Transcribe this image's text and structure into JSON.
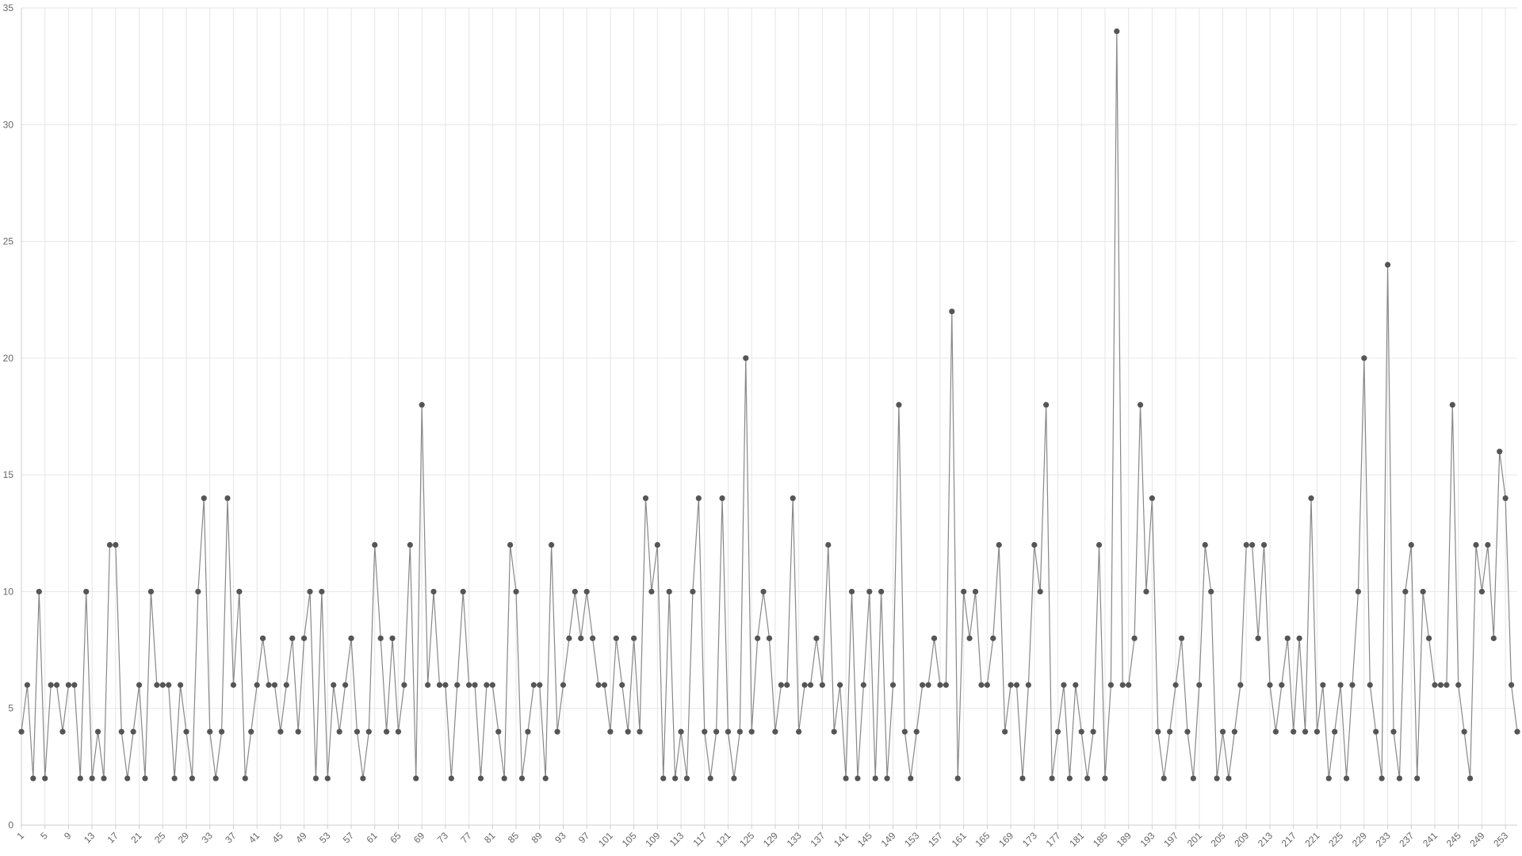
{
  "chart_data": {
    "type": "line",
    "x": [
      1,
      2,
      3,
      4,
      5,
      6,
      7,
      8,
      9,
      10,
      11,
      12,
      13,
      14,
      15,
      16,
      17,
      18,
      19,
      20,
      21,
      22,
      23,
      24,
      25,
      26,
      27,
      28,
      29,
      30,
      31,
      32,
      33,
      34,
      35,
      36,
      37,
      38,
      39,
      40,
      41,
      42,
      43,
      44,
      45,
      46,
      47,
      48,
      49,
      50,
      51,
      52,
      53,
      54,
      55,
      56,
      57,
      58,
      59,
      60,
      61,
      62,
      63,
      64,
      65,
      66,
      67,
      68,
      69,
      70,
      71,
      72,
      73,
      74,
      75,
      76,
      77,
      78,
      79,
      80,
      81,
      82,
      83,
      84,
      85,
      86,
      87,
      88,
      89,
      90,
      91,
      92,
      93,
      94,
      95,
      96,
      97,
      98,
      99,
      100,
      101,
      102,
      103,
      104,
      105,
      106,
      107,
      108,
      109,
      110,
      111,
      112,
      113,
      114,
      115,
      116,
      117,
      118,
      119,
      120,
      121,
      122,
      123,
      124,
      125,
      126,
      127,
      128,
      129,
      130,
      131,
      132,
      133,
      134,
      135,
      136,
      137,
      138,
      139,
      140,
      141,
      142,
      143,
      144,
      145,
      146,
      147,
      148,
      149,
      150,
      151,
      152,
      153,
      154,
      155,
      156,
      157,
      158,
      159,
      160,
      161,
      162,
      163,
      164,
      165,
      166,
      167,
      168,
      169,
      170,
      171,
      172,
      173,
      174,
      175,
      176,
      177,
      178,
      179,
      180,
      181,
      182,
      183,
      184,
      185,
      186,
      187,
      188,
      189,
      190,
      191,
      192,
      193,
      194,
      195,
      196,
      197,
      198,
      199,
      200,
      201,
      202,
      203,
      204,
      205,
      206,
      207,
      208,
      209,
      210,
      211,
      212,
      213,
      214,
      215,
      216,
      217,
      218,
      219,
      220,
      221,
      222,
      223,
      224,
      225,
      226,
      227,
      228,
      229,
      230,
      231,
      232,
      233,
      234,
      235,
      236,
      237,
      238,
      239,
      240,
      241,
      242,
      243,
      244,
      245,
      246,
      247,
      248,
      249,
      250,
      251,
      252,
      253,
      254,
      255
    ],
    "values": [
      4,
      6,
      2,
      10,
      2,
      6,
      6,
      4,
      6,
      6,
      2,
      10,
      2,
      4,
      2,
      12,
      12,
      4,
      2,
      4,
      6,
      2,
      10,
      6,
      6,
      6,
      2,
      6,
      4,
      2,
      10,
      14,
      4,
      2,
      4,
      14,
      6,
      10,
      2,
      4,
      6,
      8,
      6,
      6,
      4,
      6,
      8,
      4,
      8,
      10,
      2,
      10,
      2,
      6,
      4,
      6,
      8,
      4,
      2,
      4,
      12,
      8,
      4,
      8,
      4,
      6,
      12,
      2,
      18,
      6,
      10,
      6,
      6,
      2,
      6,
      10,
      6,
      6,
      2,
      6,
      6,
      4,
      2,
      12,
      10,
      2,
      4,
      6,
      6,
      2,
      12,
      4,
      6,
      8,
      10,
      8,
      10,
      8,
      6,
      6,
      4,
      8,
      6,
      4,
      8,
      4,
      14,
      10,
      12,
      2,
      10,
      2,
      4,
      2,
      10,
      14,
      4,
      2,
      4,
      14,
      4,
      2,
      4,
      20,
      4,
      8,
      10,
      8,
      4,
      6,
      6,
      14,
      4,
      6,
      6,
      8,
      6,
      12,
      4,
      6,
      2,
      10,
      2,
      6,
      10,
      2,
      10,
      2,
      6,
      18,
      4,
      2,
      4,
      6,
      6,
      8,
      6,
      6,
      22,
      2,
      10,
      8,
      10,
      6,
      6,
      8,
      12,
      4,
      6,
      6,
      2,
      6,
      12,
      10,
      18,
      2,
      4,
      6,
      2,
      6,
      4,
      2,
      4,
      12,
      2,
      6,
      34,
      6,
      6,
      8,
      18,
      10,
      14,
      4,
      2,
      4,
      6,
      8,
      4,
      2,
      6,
      12,
      10,
      2,
      4,
      2,
      4,
      6,
      12,
      12,
      8,
      12,
      6,
      4,
      6,
      8,
      4,
      8,
      4,
      14,
      4,
      6,
      2,
      4,
      6,
      2,
      6,
      10,
      20,
      6,
      4,
      2,
      24,
      4,
      2,
      10,
      12,
      2,
      10,
      8,
      6,
      6,
      6,
      18,
      6,
      4,
      2,
      12,
      10,
      12,
      8,
      16,
      14,
      6,
      4
    ],
    "color": "#888888",
    "marker_color": "#555555",
    "xlim": [
      1,
      255
    ],
    "xticks": [
      1,
      5,
      9,
      13,
      17,
      21,
      25,
      29,
      33,
      37,
      41,
      45,
      49,
      53,
      57,
      61,
      65,
      69,
      73,
      77,
      81,
      85,
      89,
      93,
      97,
      101,
      105,
      109,
      113,
      117,
      121,
      125,
      129,
      133,
      137,
      141,
      145,
      149,
      153,
      157,
      161,
      165,
      169,
      173,
      177,
      181,
      185,
      189,
      193,
      197,
      201,
      205,
      209,
      213,
      217,
      221,
      225,
      229,
      233,
      237,
      241,
      245,
      249,
      253
    ],
    "ylim": [
      0,
      35
    ],
    "yticks": [
      0,
      5,
      10,
      15,
      20,
      25,
      30,
      35
    ],
    "grid": true
  }
}
